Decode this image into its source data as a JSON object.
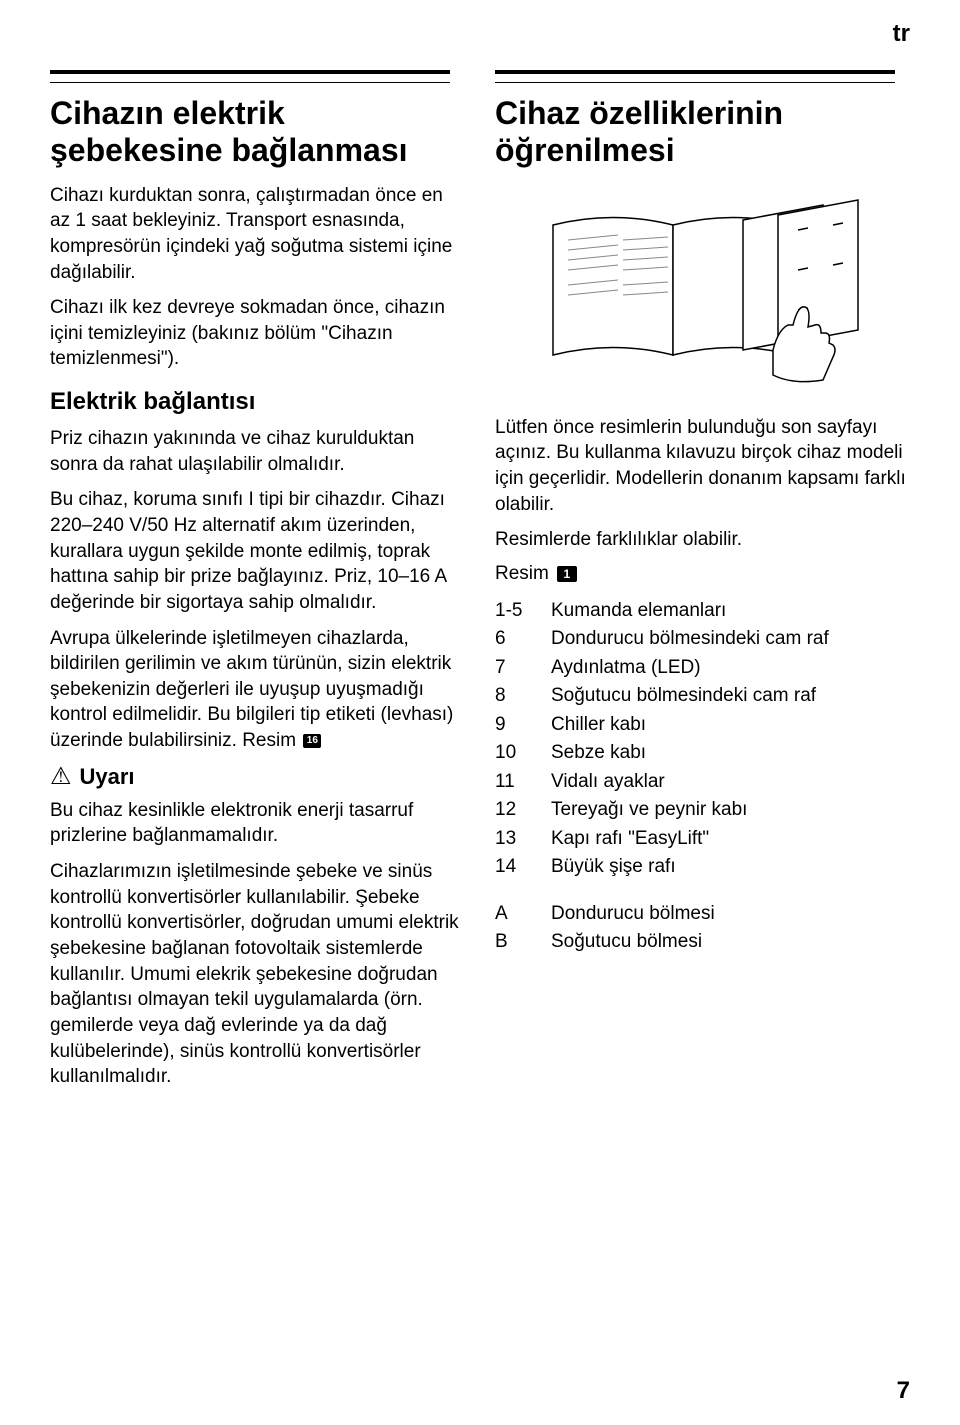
{
  "lang_tag": "tr",
  "page_number": "7",
  "left": {
    "title": "Cihazın elektrik şebekesine bağlanması",
    "intro_p1": "Cihazı kurduktan sonra, çalıştırmadan önce en az 1 saat bekleyiniz. Transport esnasında, kompresörün içindeki yağ soğutma sistemi içine dağılabilir.",
    "intro_p2": "Cihazı ilk kez devreye sokmadan önce, cihazın içini temizleyiniz (bakınız bölüm \"Cihazın temizlenmesi\").",
    "sub_heading": "Elektrik bağlantısı",
    "eb_p1": "Priz cihazın yakınında ve cihaz kurulduktan sonra da rahat ulaşılabilir olmalıdır.",
    "eb_p2": "Bu cihaz, koruma sınıfı I tipi bir cihazdır. Cihazı 220–240 V/50 Hz alternatif akım üzerinden, kurallara uygun şekilde monte edilmiş, toprak hattına sahip bir prize bağlayınız. Priz, 10–16 A değerinde bir sigortaya sahip olmalıdır.",
    "eb_p3_pre": "Avrupa ülkelerinde işletilmeyen cihazlarda, bildirilen gerilimin ve akım türünün, sizin elektrik şebekenizin değerleri ile uyuşup uyuşmadığı kontrol edilmelidir. Bu bilgileri tip etiketi (levhası) üzerinde bulabilirsiniz. Resim",
    "eb_p3_badge": "16",
    "warn_label": "Uyarı",
    "warn_p1": "Bu cihaz kesinlikle elektronik enerji tasarruf prizlerine bağlanmamalıdır.",
    "warn_p2": "Cihazlarımızın işletilmesinde şebeke ve sinüs kontrollü konvertisörler kullanılabilir. Şebeke kontrollü konvertisörler, doğrudan umumi elektrik şebekesine bağlanan fotovoltaik sistemlerde kullanılır. Umumi elekrik şebekesine doğrudan bağlantısı olmayan tekil uygulamalarda (örn. gemilerde veya dağ evlerinde ya da dağ kulübelerinde), sinüs kontrollü konvertisörler kullanılmalıdır."
  },
  "right": {
    "title": "Cihaz özelliklerinin öğrenilmesi",
    "intro": "Lütfen önce resimlerin bulunduğu son sayfayı açınız. Bu kullanma kılavuzu birçok cihaz modeli için geçerlidir. Modellerin donanım kapsamı farklı olabilir.",
    "intro2": "Resimlerde farklılıklar olabilir.",
    "resim_label": "Resim",
    "resim_badge": "1",
    "parts": [
      {
        "num": "1-5",
        "label": "Kumanda elemanları"
      },
      {
        "num": "6",
        "label": "Dondurucu bölmesindeki cam raf"
      },
      {
        "num": "7",
        "label": "Aydınlatma (LED)"
      },
      {
        "num": "8",
        "label": "Soğutucu bölmesindeki cam raf"
      },
      {
        "num": "9",
        "label": "Chiller kabı"
      },
      {
        "num": "10",
        "label": "Sebze kabı"
      },
      {
        "num": "11",
        "label": "Vidalı ayaklar"
      },
      {
        "num": "12",
        "label": "Tereyağı ve peynir kabı"
      },
      {
        "num": "13",
        "label": "Kapı rafı \"EasyLift\""
      },
      {
        "num": "14",
        "label": "Büyük şişe rafı"
      }
    ],
    "sections": [
      {
        "num": "A",
        "label": "Dondurucu bölmesi"
      },
      {
        "num": "B",
        "label": "Soğutucu bölmesi"
      }
    ]
  },
  "illustration": {
    "stroke": "#000000",
    "fill": "#ffffff"
  }
}
